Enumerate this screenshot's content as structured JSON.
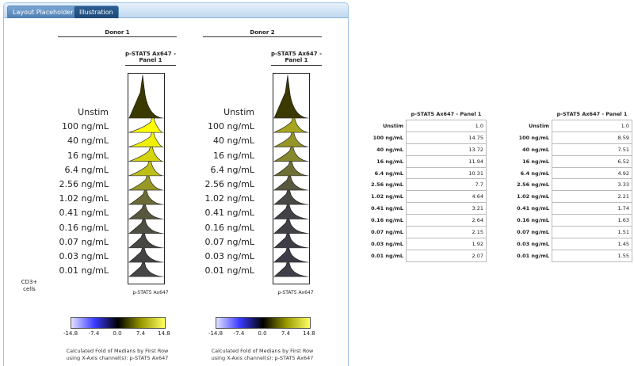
{
  "tabs": [
    {
      "label": "Layout Placeholders"
    },
    {
      "label": "Illustration"
    }
  ],
  "donors": [
    {
      "title": "Donor 1",
      "panel_title": "p-STAT5 Ax647 - Panel 1",
      "x_axis_label": "p-STAT5 Ax647"
    },
    {
      "title": "Donor 2",
      "panel_title": "p-STAT5 Ax647 - Panel 1",
      "x_axis_label": "p-STAT5 Ax647"
    }
  ],
  "row_labels": [
    "Unstim",
    "100 ng/mL",
    "40 ng/mL",
    "16 ng/mL",
    "6.4 ng/mL",
    "2.56 ng/mL",
    "1.02 ng/mL",
    "0.41 ng/mL",
    "0.16 ng/mL",
    "0.07 ng/mL",
    "0.03 ng/mL",
    "0.01 ng/mL"
  ],
  "y_axis_label": "CD3+ cells",
  "colorbar": {
    "ticks": [
      "-14.8",
      "-7.4",
      "0.0",
      "7.4",
      "14.8"
    ],
    "colors": {
      "low": "#3a3aff",
      "mid": "#000000",
      "high": "#ffff33",
      "low_light": "#ffffff"
    }
  },
  "footnote": {
    "line1": "Calculated Fold of Medians by First Row",
    "line2": "using X-Axis channel(s): p-STAT5 Ax647"
  },
  "tables": [
    {
      "header": "p-STAT5 Ax647 - Panel 1",
      "rows": [
        {
          "label": "Unstim",
          "value": "1.0"
        },
        {
          "label": "100 ng/mL",
          "value": "14.75"
        },
        {
          "label": "40 ng/mL",
          "value": "13.72"
        },
        {
          "label": "16 ng/mL",
          "value": "11.94"
        },
        {
          "label": "6.4 ng/mL",
          "value": "10.31"
        },
        {
          "label": "2.56 ng/mL",
          "value": "7.7"
        },
        {
          "label": "1.02 ng/mL",
          "value": "4.64"
        },
        {
          "label": "0.41 ng/mL",
          "value": "3.21"
        },
        {
          "label": "0.16 ng/mL",
          "value": "2.64"
        },
        {
          "label": "0.07 ng/mL",
          "value": "2.15"
        },
        {
          "label": "0.03 ng/mL",
          "value": "1.92"
        },
        {
          "label": "0.01 ng/mL",
          "value": "2.07"
        }
      ]
    },
    {
      "header": "p-STAT5 Ax647 - Panel 1",
      "rows": [
        {
          "label": "Unstim",
          "value": "1.0"
        },
        {
          "label": "100 ng/mL",
          "value": "8.59"
        },
        {
          "label": "40 ng/mL",
          "value": "7.51"
        },
        {
          "label": "16 ng/mL",
          "value": "6.52"
        },
        {
          "label": "6.4 ng/mL",
          "value": "4.92"
        },
        {
          "label": "2.56 ng/mL",
          "value": "3.33"
        },
        {
          "label": "1.02 ng/mL",
          "value": "2.21"
        },
        {
          "label": "0.41 ng/mL",
          "value": "1.74"
        },
        {
          "label": "0.16 ng/mL",
          "value": "1.63"
        },
        {
          "label": "0.07 ng/mL",
          "value": "1.51"
        },
        {
          "label": "0.03 ng/mL",
          "value": "1.45"
        },
        {
          "label": "0.01 ng/mL",
          "value": "1.55"
        }
      ]
    }
  ]
}
